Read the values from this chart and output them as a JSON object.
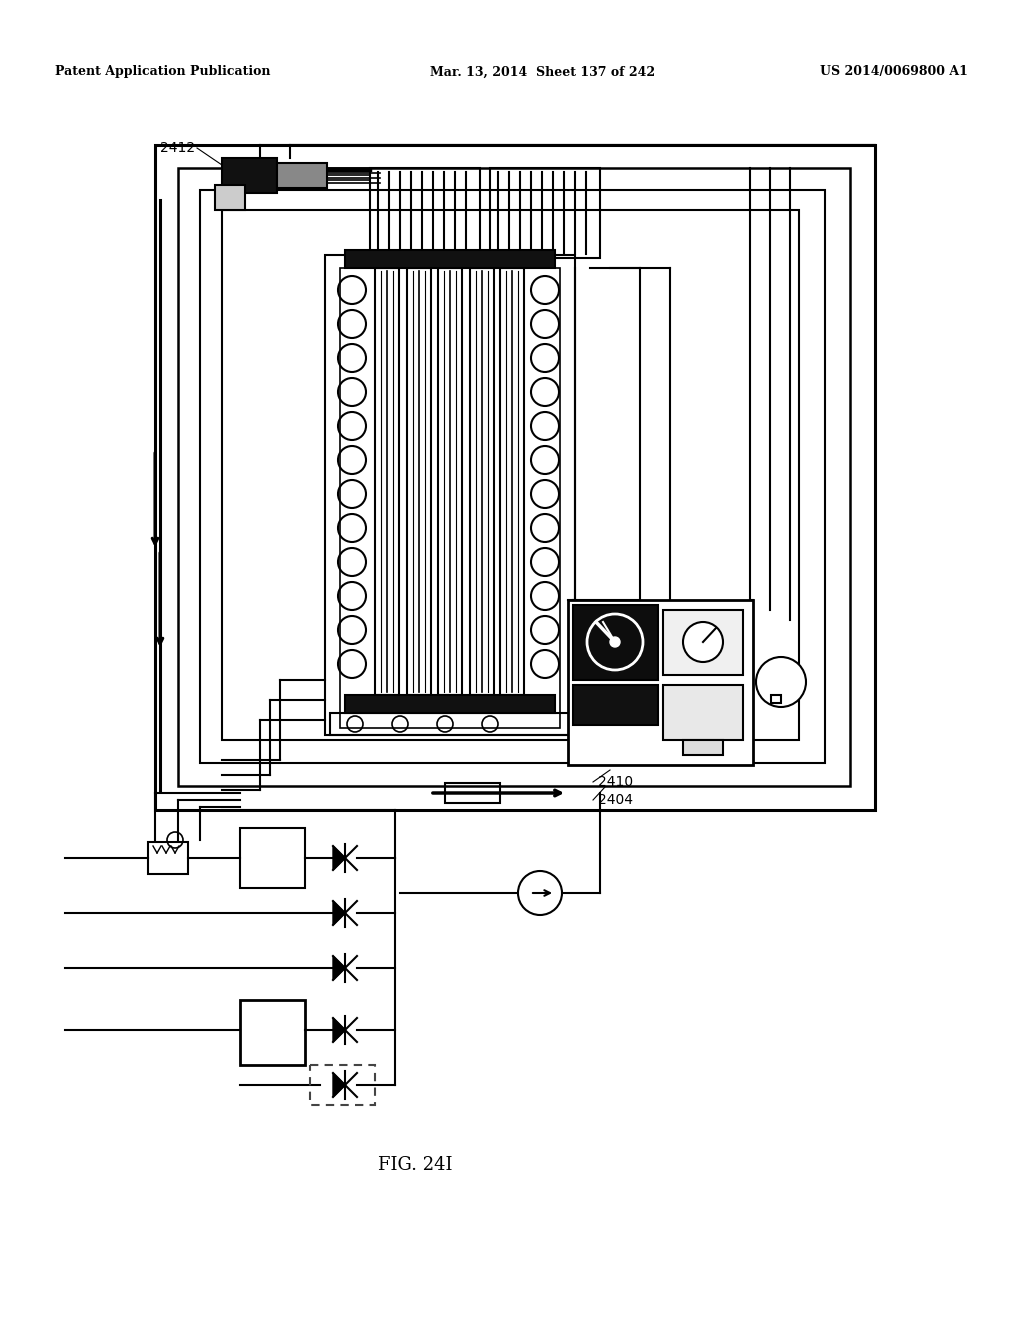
{
  "header_left": "Patent Application Publication",
  "header_middle": "Mar. 13, 2014  Sheet 137 of 242",
  "header_right": "US 2014/0069800 A1",
  "figure_label": "FIG. 24I",
  "label_2412": "2412",
  "label_2410": "2410",
  "label_2404": "2404",
  "bg_color": "#ffffff",
  "line_color": "#000000"
}
